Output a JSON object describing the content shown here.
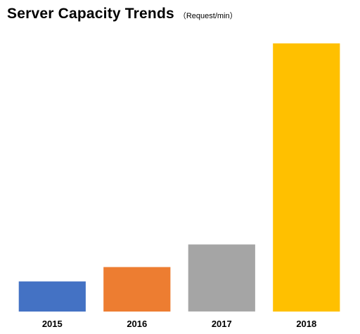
{
  "chart_data": {
    "type": "bar",
    "title": "Server Capacity Trends",
    "subtitle": "（Request/min）",
    "categories": [
      "2015",
      "2016",
      "2017",
      "2018"
    ],
    "values": [
      44,
      65,
      98,
      392
    ],
    "colors": [
      "#4472C4",
      "#ED7D31",
      "#A5A5A5",
      "#FFC000"
    ],
    "ylim": [
      0,
      400
    ],
    "grid": false,
    "legend": "none"
  }
}
